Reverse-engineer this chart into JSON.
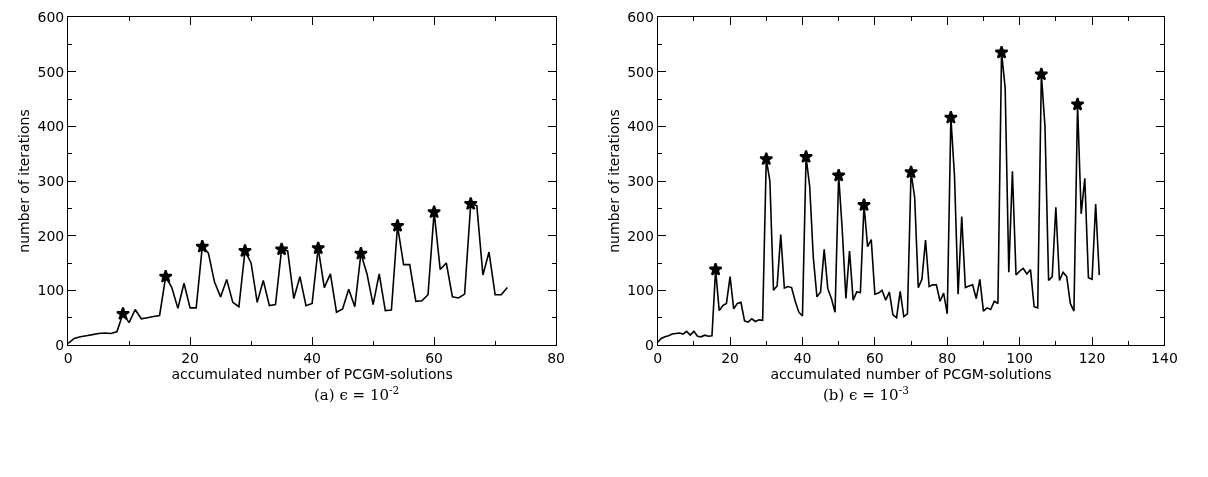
{
  "chart_data": [
    {
      "type": "line",
      "title": "(a) ϵ = 10$^{-2}$",
      "xlabel": "accumulated number of PCGM-solutions",
      "ylabel": "number of iterations",
      "xlim": [
        0,
        80
      ],
      "xticks": [
        0,
        20,
        40,
        60,
        80
      ],
      "ylim": [
        0,
        600
      ],
      "yticks": [
        0,
        100,
        200,
        300,
        400,
        500,
        600
      ],
      "series": [
        {
          "color": "#000000",
          "marker": "none",
          "x": [
            0,
            1,
            2,
            3,
            4,
            5,
            6,
            7,
            8,
            9,
            10,
            11,
            12,
            13,
            14,
            15,
            16,
            17,
            18,
            19,
            20,
            21,
            22,
            23,
            24,
            25,
            26,
            27,
            28,
            29,
            30,
            31,
            32,
            33,
            34,
            35,
            36,
            37,
            38,
            39,
            40,
            41,
            42,
            43,
            44,
            45,
            46,
            47,
            48,
            49,
            50,
            51,
            52,
            53,
            54,
            55,
            56,
            57,
            58,
            59,
            60,
            61,
            62,
            63,
            64,
            65,
            66,
            67,
            68,
            69,
            70,
            71,
            72
          ],
          "values": [
            3,
            12,
            15,
            17,
            19,
            21,
            22,
            21,
            24,
            57,
            41,
            65,
            48,
            50,
            52,
            54,
            125,
            105,
            67,
            113,
            68,
            68,
            180,
            168,
            115,
            88,
            120,
            78,
            70,
            172,
            150,
            78,
            118,
            72,
            74,
            175,
            172,
            85,
            125,
            72,
            76,
            177,
            105,
            130,
            60,
            66,
            102,
            70,
            167,
            130,
            74,
            130,
            63,
            64,
            218,
            147,
            147,
            80,
            81,
            92,
            243,
            138,
            150,
            88,
            86,
            93,
            258,
            255,
            128,
            170,
            92,
            92,
            105
          ]
        },
        {
          "type": "scatter",
          "color": "#000000",
          "marker": "star",
          "x": [
            9,
            16,
            22,
            29,
            35,
            41,
            48,
            54,
            60,
            66
          ],
          "values": [
            57,
            125,
            180,
            172,
            175,
            177,
            167,
            218,
            243,
            258
          ]
        }
      ]
    },
    {
      "type": "line",
      "title": "(b) ϵ = 10$^{-3}$",
      "xlabel": "accumulated number of PCGM-solutions",
      "ylabel": "number of iterations",
      "xlim": [
        0,
        140
      ],
      "xticks": [
        0,
        20,
        40,
        60,
        80,
        100,
        120,
        140
      ],
      "ylim": [
        0,
        600
      ],
      "yticks": [
        0,
        100,
        200,
        300,
        400,
        500,
        600
      ],
      "series": [
        {
          "color": "#000000",
          "marker": "none",
          "x": [
            0,
            1,
            2,
            3,
            4,
            5,
            6,
            7,
            8,
            9,
            10,
            11,
            12,
            13,
            14,
            15,
            16,
            17,
            18,
            19,
            20,
            21,
            22,
            23,
            24,
            25,
            26,
            27,
            28,
            29,
            30,
            31,
            32,
            33,
            34,
            35,
            36,
            37,
            38,
            39,
            40,
            41,
            42,
            43,
            44,
            45,
            46,
            47,
            48,
            49,
            50,
            51,
            52,
            53,
            54,
            55,
            56,
            57,
            58,
            59,
            60,
            61,
            62,
            63,
            64,
            65,
            66,
            67,
            68,
            69,
            70,
            71,
            72,
            73,
            74,
            75,
            76,
            77,
            78,
            79,
            80,
            81,
            82,
            83,
            84,
            85,
            86,
            87,
            88,
            89,
            90,
            91,
            92,
            93,
            94,
            95,
            96,
            97,
            98,
            99,
            100,
            101,
            102,
            103,
            104,
            105,
            106,
            107,
            108,
            109,
            110,
            111,
            112,
            113,
            114,
            115,
            116,
            117,
            118,
            119,
            120,
            121,
            122
          ],
          "values": [
            5,
            12,
            15,
            17,
            20,
            21,
            22,
            20,
            25,
            18,
            25,
            16,
            15,
            18,
            16,
            17,
            138,
            63,
            72,
            76,
            125,
            66,
            76,
            78,
            44,
            42,
            48,
            43,
            46,
            45,
            340,
            300,
            100,
            108,
            202,
            104,
            107,
            105,
            80,
            60,
            53,
            344,
            290,
            160,
            88,
            97,
            175,
            103,
            85,
            60,
            310,
            210,
            85,
            172,
            82,
            97,
            96,
            256,
            180,
            193,
            93,
            95,
            100,
            82,
            97,
            55,
            50,
            98,
            52,
            57,
            316,
            270,
            105,
            120,
            192,
            107,
            110,
            110,
            80,
            95,
            57,
            416,
            310,
            93,
            235,
            105,
            108,
            110,
            85,
            120,
            62,
            68,
            65,
            80,
            76,
            535,
            470,
            133,
            318,
            128,
            135,
            140,
            130,
            138,
            70,
            68,
            495,
            400,
            118,
            125,
            252,
            118,
            133,
            125,
            76,
            62,
            440,
            240,
            305,
            123,
            120,
            258,
            128
          ]
        },
        {
          "type": "scatter",
          "color": "#000000",
          "marker": "star",
          "x": [
            16,
            30,
            41,
            50,
            57,
            70,
            81,
            95,
            106,
            116
          ],
          "values": [
            138,
            340,
            344,
            310,
            256,
            316,
            416,
            535,
            495,
            440
          ]
        }
      ]
    }
  ]
}
